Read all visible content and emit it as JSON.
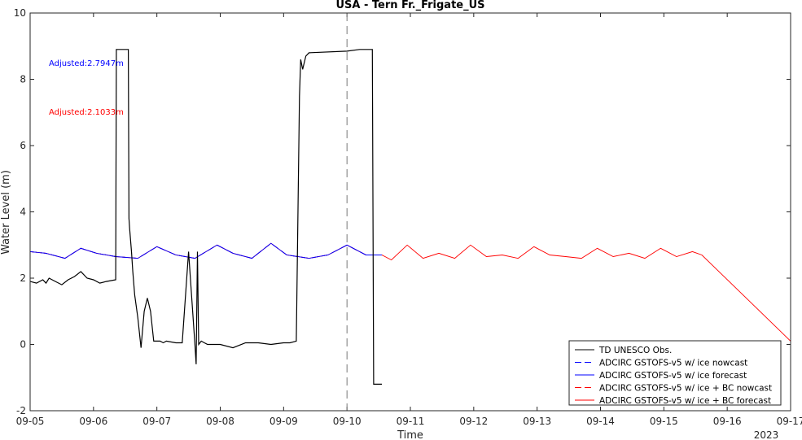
{
  "chart_data": {
    "type": "line",
    "title": "USA - Tern Fr._Frigate_US",
    "xlabel": "Time",
    "ylabel": "Water Level (m)",
    "x_ticks": [
      "09-05",
      "09-06",
      "09-07",
      "09-08",
      "09-09",
      "09-10",
      "09-11",
      "09-12",
      "09-13",
      "09-14",
      "09-15",
      "09-16",
      "09-17"
    ],
    "x_year_label": "2023",
    "y_ticks": [
      "-2",
      "0",
      "2",
      "4",
      "6",
      "8",
      "10"
    ],
    "xlim": [
      0,
      12
    ],
    "ylim": [
      -2,
      10
    ],
    "nowcast_line_day": 5,
    "annotations": [
      {
        "text": "Adjusted:2.7947m",
        "color": "#0000ff"
      },
      {
        "text": "Adjusted:2.1033m",
        "color": "#ff0000"
      }
    ],
    "legend_position": "bottom-right",
    "series": [
      {
        "name": "TD UNESCO Obs.",
        "color": "#000000",
        "style": "solid",
        "x": [
          0,
          0.1,
          0.2,
          0.25,
          0.3,
          0.4,
          0.5,
          0.6,
          0.7,
          0.8,
          0.9,
          1.0,
          1.1,
          1.2,
          1.35,
          1.36,
          1.37,
          1.55,
          1.56,
          1.57,
          1.6,
          1.62,
          1.65,
          1.7,
          1.75,
          1.8,
          1.85,
          1.9,
          1.95,
          2.0,
          2.05,
          2.1,
          2.15,
          2.3,
          2.4,
          2.5,
          2.6,
          2.62,
          2.64,
          2.66,
          2.7,
          2.75,
          2.8,
          3.0,
          3.2,
          3.4,
          3.6,
          3.8,
          4.0,
          4.1,
          4.2,
          4.25,
          4.27,
          4.3,
          4.35,
          4.4,
          5.0,
          5.2,
          5.4,
          5.42,
          5.44,
          5.5,
          5.55
        ],
        "y": [
          1.9,
          1.85,
          1.95,
          1.85,
          2.0,
          1.9,
          1.8,
          1.95,
          2.05,
          2.2,
          2.0,
          1.95,
          1.85,
          1.9,
          1.95,
          8.9,
          8.9,
          8.9,
          3.8,
          3.5,
          2.8,
          2.2,
          1.5,
          0.8,
          -0.1,
          1.0,
          1.4,
          1.0,
          0.1,
          0.1,
          0.1,
          0.05,
          0.1,
          0.05,
          0.05,
          2.8,
          0.0,
          -0.6,
          2.8,
          0.0,
          0.1,
          0.05,
          0.0,
          0.0,
          -0.1,
          0.05,
          0.05,
          0.0,
          0.05,
          0.05,
          0.1,
          7.5,
          8.6,
          8.3,
          8.7,
          8.8,
          8.85,
          8.9,
          8.9,
          -1.2,
          -1.2,
          -1.2,
          -1.2
        ]
      },
      {
        "name": "ADCIRC GSTOFS-v5 w/ ice nowcast",
        "color": "#0000ff",
        "style": "dashed",
        "x": [
          0,
          0.25,
          0.55,
          0.8,
          1.05,
          1.35,
          1.7,
          2.0,
          2.3,
          2.6,
          2.95,
          3.2,
          3.5,
          3.8,
          4.05,
          4.4,
          4.7,
          5.0,
          5.3,
          5.55
        ],
        "y": [
          2.8,
          2.75,
          2.6,
          2.9,
          2.75,
          2.65,
          2.6,
          2.95,
          2.7,
          2.6,
          3.0,
          2.75,
          2.6,
          3.05,
          2.7,
          2.6,
          2.7,
          3.0,
          2.7,
          2.7
        ]
      },
      {
        "name": "ADCIRC GSTOFS-v5 w/ ice forecast",
        "color": "#0000ff",
        "style": "solid",
        "x": [
          0,
          0.25,
          0.55,
          0.8,
          1.05,
          1.35,
          1.7,
          2.0,
          2.3,
          2.6,
          2.95,
          3.2,
          3.5,
          3.8,
          4.05,
          4.4,
          4.7,
          5.0,
          5.3,
          5.55
        ],
        "y": [
          2.8,
          2.75,
          2.6,
          2.9,
          2.75,
          2.65,
          2.6,
          2.95,
          2.7,
          2.6,
          3.0,
          2.75,
          2.6,
          3.05,
          2.7,
          2.6,
          2.7,
          3.0,
          2.7,
          2.7
        ]
      },
      {
        "name": "ADCIRC GSTOFS-v5 w/ ice + BC nowcast",
        "color": "#ff0000",
        "style": "dashed",
        "x": [
          0,
          0.25,
          0.55,
          0.8,
          1.05,
          1.35,
          1.7,
          2.0,
          2.3,
          2.6,
          2.95,
          3.2,
          3.5,
          3.8,
          4.05,
          4.4,
          4.7,
          5.0,
          5.3,
          5.55
        ],
        "y": [
          2.8,
          2.75,
          2.6,
          2.9,
          2.75,
          2.65,
          2.6,
          2.95,
          2.7,
          2.6,
          3.0,
          2.75,
          2.6,
          3.05,
          2.7,
          2.6,
          2.7,
          3.0,
          2.7,
          2.7
        ]
      },
      {
        "name": "ADCIRC GSTOFS-v5 w/ ice + BC forecast",
        "color": "#ff0000",
        "style": "solid",
        "x": [
          0,
          0.25,
          0.55,
          0.8,
          1.05,
          1.35,
          1.7,
          2.0,
          2.3,
          2.6,
          2.95,
          3.2,
          3.5,
          3.8,
          4.05,
          4.4,
          4.7,
          5.0,
          5.3,
          5.55,
          5.7,
          5.95,
          6.2,
          6.45,
          6.7,
          6.95,
          7.2,
          7.45,
          7.7,
          7.95,
          8.2,
          8.45,
          8.7,
          8.95,
          9.2,
          9.45,
          9.7,
          9.95,
          10.2,
          10.45,
          10.6,
          12.0
        ],
        "y": [
          2.8,
          2.75,
          2.6,
          2.9,
          2.75,
          2.65,
          2.6,
          2.95,
          2.7,
          2.6,
          3.0,
          2.75,
          2.6,
          3.05,
          2.7,
          2.6,
          2.7,
          3.0,
          2.7,
          2.7,
          2.55,
          3.0,
          2.6,
          2.75,
          2.6,
          3.0,
          2.65,
          2.7,
          2.6,
          2.95,
          2.7,
          2.65,
          2.6,
          2.9,
          2.65,
          2.75,
          2.6,
          2.9,
          2.65,
          2.8,
          2.7,
          0.1
        ]
      }
    ]
  }
}
